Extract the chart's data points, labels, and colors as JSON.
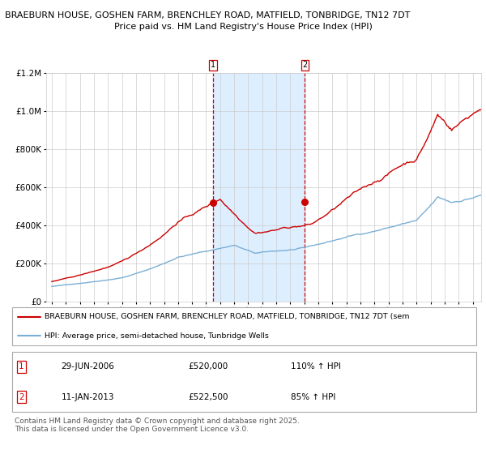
{
  "title1": "BRAEBURN HOUSE, GOSHEN FARM, BRENCHLEY ROAD, MATFIELD, TONBRIDGE, TN12 7DT",
  "title2": "Price paid vs. HM Land Registry's House Price Index (HPI)",
  "legend_line1": "BRAEBURN HOUSE, GOSHEN FARM, BRENCHLEY ROAD, MATFIELD, TONBRIDGE, TN12 7DT (sem",
  "legend_line2": "HPI: Average price, semi-detached house, Tunbridge Wells",
  "footer": "Contains HM Land Registry data © Crown copyright and database right 2025.\nThis data is licensed under the Open Government Licence v3.0.",
  "sale1_label": "1",
  "sale1_date": "29-JUN-2006",
  "sale1_price": "£520,000",
  "sale1_hpi": "110% ↑ HPI",
  "sale2_label": "2",
  "sale2_date": "11-JAN-2013",
  "sale2_price": "£522,500",
  "sale2_hpi": "85% ↑ HPI",
  "sale1_x": 2006.5,
  "sale1_y": 520000,
  "sale2_x": 2013.04,
  "sale2_y": 522500,
  "ylim": [
    0,
    1200000
  ],
  "xlim_start": 1994.6,
  "xlim_end": 2025.6,
  "red_color": "#cc0000",
  "blue_color": "#7aafd4",
  "shade_color": "#ddeeff",
  "grid_color": "#cccccc",
  "bg_color": "#ffffff"
}
